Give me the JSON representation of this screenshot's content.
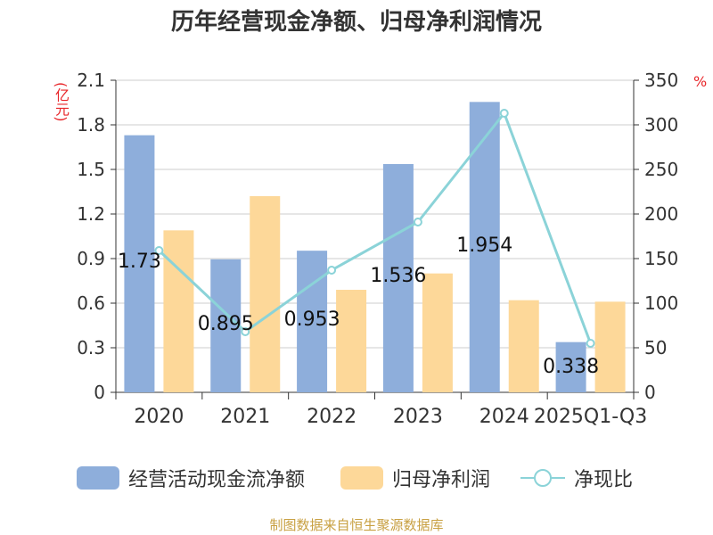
{
  "header": {
    "title": "历年经营现金净额、归母净利润情况"
  },
  "units": {
    "left": "(亿元)",
    "right": "%"
  },
  "legend": {
    "items": [
      {
        "label": "经营活动现金流净额",
        "color": "#8eaedb",
        "kind": "bar"
      },
      {
        "label": "归母净利润",
        "color": "#fdd899",
        "kind": "bar"
      },
      {
        "label": "净现比",
        "color": "#8bd3d8",
        "kind": "line"
      }
    ]
  },
  "footer": {
    "source": "制图数据来自恒生聚源数据库"
  },
  "chart_data": {
    "type": "bar",
    "categories": [
      "2020",
      "2021",
      "2022",
      "2023",
      "2024",
      "2025Q1-Q3"
    ],
    "series": [
      {
        "name": "经营活动现金流净额",
        "type": "bar",
        "axis": "left",
        "color": "#8eaedb",
        "values": [
          1.73,
          0.895,
          0.953,
          1.536,
          1.954,
          0.338
        ],
        "labels": [
          "1.73",
          "0.895",
          "0.953",
          "1.536",
          "1.954",
          "0.338"
        ]
      },
      {
        "name": "归母净利润",
        "type": "bar",
        "axis": "left",
        "color": "#fdd899",
        "values": [
          1.09,
          1.32,
          0.69,
          0.8,
          0.62,
          0.61
        ]
      },
      {
        "name": "净现比",
        "type": "line",
        "axis": "right",
        "color": "#8bd3d8",
        "values": [
          159,
          68,
          137,
          191,
          313,
          55
        ]
      }
    ],
    "y_left": {
      "ylim": [
        0,
        2.1
      ],
      "ticks": [
        "0",
        "0.3",
        "0.6",
        "0.9",
        "1.2",
        "1.5",
        "1.8",
        "2.1"
      ]
    },
    "y_right": {
      "ylim": [
        0,
        350
      ],
      "ticks": [
        "0",
        "50",
        "100",
        "150",
        "200",
        "250",
        "300",
        "350"
      ]
    },
    "grid": true,
    "legend_position": "bottom"
  }
}
